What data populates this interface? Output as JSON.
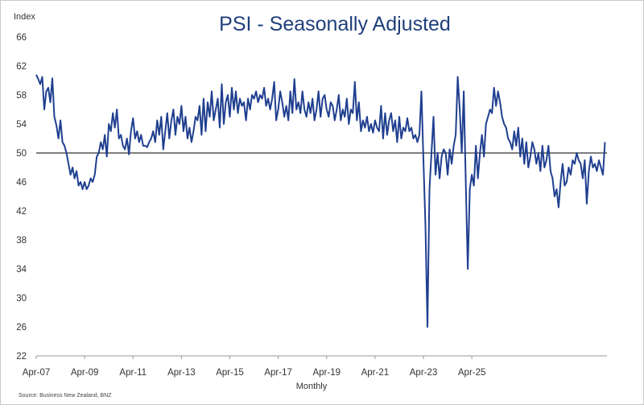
{
  "chart_data": {
    "type": "line",
    "title": "PSI - Seasonally Adjusted",
    "ylabel": "Index",
    "xlabel": "Monthly",
    "source": "Source: Business New Zealand, BNZ",
    "ylim": [
      22,
      66
    ],
    "yticks": [
      22,
      26,
      30,
      34,
      38,
      42,
      46,
      50,
      54,
      58,
      62,
      66
    ],
    "xticks": [
      "Apr-07",
      "Apr-09",
      "Apr-11",
      "Apr-13",
      "Apr-15",
      "Apr-17",
      "Apr-19",
      "Apr-21",
      "Apr-23",
      "Apr-25"
    ],
    "x_start": "Apr-07",
    "reference_line": 50,
    "line_color": "#1f3f8f",
    "series": [
      {
        "values": [
          60.8,
          60.2,
          59.5,
          60.5,
          56.0,
          58.5,
          59.0,
          57.0,
          60.3,
          55.0,
          53.8,
          52.0,
          54.5,
          51.5,
          51.0,
          50.0,
          48.5,
          47.0,
          48.0,
          46.5,
          47.5,
          45.5,
          46.0,
          45.0,
          46.0,
          45.0,
          45.5,
          46.5,
          46.0,
          47.0,
          49.5,
          50.0,
          51.5,
          50.5,
          52.5,
          49.5,
          54.0,
          53.0,
          55.5,
          53.5,
          56.0,
          52.0,
          52.5,
          51.0,
          50.5,
          52.0,
          49.8,
          53.0,
          54.8,
          52.0,
          53.0,
          51.5,
          52.5,
          51.0,
          51.0,
          50.8,
          51.5,
          52.0,
          53.0,
          51.5,
          54.5,
          52.5,
          55.0,
          50.5,
          53.0,
          55.5,
          52.0,
          54.5,
          56.0,
          52.5,
          55.0,
          54.0,
          56.5,
          53.0,
          55.0,
          52.0,
          53.5,
          51.5,
          53.0,
          55.0,
          54.5,
          56.5,
          52.5,
          57.5,
          53.0,
          57.0,
          55.0,
          58.5,
          54.5,
          56.0,
          57.5,
          53.5,
          59.5,
          54.0,
          57.0,
          58.0,
          55.0,
          59.0,
          56.0,
          58.5,
          55.5,
          57.5,
          56.5,
          57.0,
          54.5,
          57.5,
          56.0,
          58.0,
          57.5,
          58.5,
          57.0,
          58.0,
          57.5,
          59.0,
          56.5,
          57.5,
          56.0,
          57.5,
          59.8,
          54.5,
          56.0,
          58.5,
          57.0,
          55.0,
          56.5,
          54.5,
          58.5,
          55.5,
          60.2,
          56.0,
          57.0,
          55.5,
          58.5,
          56.0,
          55.0,
          57.0,
          55.5,
          57.5,
          54.5,
          56.0,
          58.5,
          55.0,
          57.5,
          58.0,
          56.0,
          55.0,
          57.0,
          56.5,
          54.5,
          56.0,
          58.0,
          54.5,
          56.0,
          55.0,
          57.5,
          54.0,
          56.0,
          55.5,
          59.8,
          54.5,
          57.0,
          53.0,
          54.5,
          53.5,
          55.0,
          53.0,
          54.0,
          52.8,
          54.5,
          53.5,
          53.0,
          56.5,
          52.0,
          55.5,
          52.5,
          54.5,
          55.5,
          53.0,
          54.5,
          51.5,
          55.0,
          52.0,
          53.5,
          53.0,
          54.8,
          53.0,
          53.5,
          52.0,
          52.5,
          51.5,
          52.5,
          58.5,
          49.0,
          40.0,
          26.0,
          45.0,
          50.0,
          55.0,
          47.0,
          50.0,
          46.5,
          49.5,
          50.5,
          50.0,
          47.0,
          50.5,
          48.5,
          51.0,
          52.5,
          60.5,
          56.0,
          50.0,
          58.5,
          46.0,
          34.0,
          45.0,
          47.0,
          45.5,
          51.0,
          46.5,
          50.0,
          52.5,
          49.5,
          54.0,
          55.0,
          56.0,
          55.5,
          59.0,
          56.5,
          58.5,
          57.0,
          55.0,
          54.0,
          53.5,
          52.0,
          51.5,
          50.5,
          53.0,
          51.0,
          53.5,
          49.5,
          52.0,
          48.5,
          51.5,
          48.0,
          49.5,
          51.5,
          50.5,
          48.5,
          50.0,
          47.5,
          51.0,
          48.0,
          49.0,
          51.0,
          47.5,
          46.5,
          44.0,
          45.0,
          42.5,
          46.0,
          48.5,
          45.5,
          46.0,
          48.0,
          47.0,
          49.0,
          48.5,
          50.0,
          49.0,
          48.5,
          46.5,
          49.0,
          43.0,
          47.5,
          49.5,
          48.0,
          48.5,
          47.5,
          49.0,
          48.0,
          47.0,
          51.5
        ]
      }
    ]
  }
}
